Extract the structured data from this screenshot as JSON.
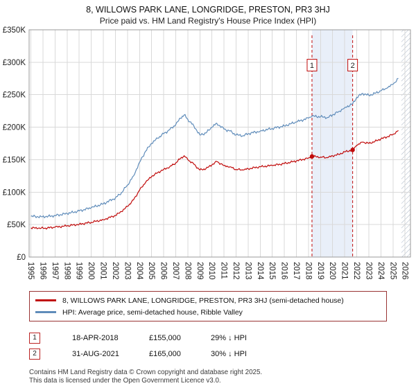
{
  "title": "8, WILLOWS PARK LANE, LONGRIDGE, PRESTON, PR3 3HJ",
  "subtitle": "Price paid vs. HM Land Registry's House Price Index (HPI)",
  "chart_data": {
    "type": "line",
    "title": "8, WILLOWS PARK LANE, LONGRIDGE, PRESTON, PR3 3HJ",
    "subtitle": "Price paid vs. HM Land Registry's House Price Index (HPI)",
    "xlabel": "",
    "ylabel": "",
    "x_range": [
      1994.85,
      2026.45
    ],
    "y_range": [
      0,
      350000
    ],
    "x_ticks": [
      1995,
      1996,
      1997,
      1998,
      1999,
      2000,
      2001,
      2002,
      2003,
      2004,
      2005,
      2006,
      2007,
      2008,
      2009,
      2010,
      2011,
      2012,
      2013,
      2014,
      2015,
      2016,
      2017,
      2018,
      2019,
      2020,
      2021,
      2022,
      2023,
      2024,
      2025,
      2026
    ],
    "y_ticks": [
      0,
      50000,
      100000,
      150000,
      200000,
      250000,
      300000,
      350000
    ],
    "y_tick_labels": [
      "£0",
      "£50K",
      "£100K",
      "£150K",
      "£200K",
      "£250K",
      "£300K",
      "£350K"
    ],
    "grid": true,
    "legend_position": "bottom",
    "colors": {
      "property": "#c00a0a",
      "hpi": "#5f8cba",
      "shade": "#e9eff9",
      "hatch": "#a8b4c4",
      "grid": "#d9d9d9",
      "border": "#999999"
    },
    "series": [
      {
        "name": "8, WILLOWS PARK LANE, LONGRIDGE, PRESTON, PR3 3HJ (semi-detached house)",
        "color": "#c00a0a",
        "anchors": [
          [
            1995,
            45000
          ],
          [
            1995.6,
            44300
          ],
          [
            1996.2,
            44600
          ],
          [
            1997,
            46000
          ],
          [
            1998,
            48000
          ],
          [
            1999,
            50500
          ],
          [
            2000,
            53500
          ],
          [
            2001,
            57500
          ],
          [
            2002,
            64000
          ],
          [
            2002.5,
            70000
          ],
          [
            2003,
            78000
          ],
          [
            2003.5,
            88000
          ],
          [
            2004,
            103000
          ],
          [
            2004.5,
            115000
          ],
          [
            2005,
            124000
          ],
          [
            2005.5,
            130000
          ],
          [
            2006,
            135000
          ],
          [
            2006.5,
            139000
          ],
          [
            2007,
            145000
          ],
          [
            2007.4,
            152000
          ],
          [
            2007.7,
            156000
          ],
          [
            2008,
            150000
          ],
          [
            2008.5,
            143000
          ],
          [
            2009,
            134000
          ],
          [
            2009.5,
            136000
          ],
          [
            2010,
            142000
          ],
          [
            2010.4,
            147000
          ],
          [
            2011,
            141000
          ],
          [
            2011.5,
            139000
          ],
          [
            2012,
            135000
          ],
          [
            2012.6,
            134000
          ],
          [
            2013,
            136000
          ],
          [
            2014,
            139000
          ],
          [
            2015,
            141000
          ],
          [
            2016,
            144000
          ],
          [
            2017,
            148000
          ],
          [
            2018,
            152500
          ],
          [
            2018.29,
            155000
          ],
          [
            2019,
            154000
          ],
          [
            2019.6,
            153000
          ],
          [
            2020,
            156000
          ],
          [
            2020.5,
            158000
          ],
          [
            2021,
            162000
          ],
          [
            2021.66,
            165000
          ],
          [
            2022,
            172000
          ],
          [
            2022.5,
            177000
          ],
          [
            2023,
            175000
          ],
          [
            2023.5,
            178000
          ],
          [
            2024,
            182000
          ],
          [
            2024.5,
            185000
          ],
          [
            2025,
            189000
          ],
          [
            2025.45,
            195000
          ]
        ]
      },
      {
        "name": "HPI: Average price, semi-detached house, Ribble Valley",
        "color": "#5f8cba",
        "anchors": [
          [
            1995,
            63000
          ],
          [
            1995.6,
            61800
          ],
          [
            1996.2,
            62000
          ],
          [
            1997,
            64000
          ],
          [
            1998,
            67000
          ],
          [
            1999,
            71000
          ],
          [
            2000,
            76000
          ],
          [
            2001,
            82000
          ],
          [
            2002,
            91000
          ],
          [
            2002.5,
            99000
          ],
          [
            2003,
            111000
          ],
          [
            2003.5,
            125000
          ],
          [
            2004,
            146000
          ],
          [
            2004.5,
            163000
          ],
          [
            2005,
            175000
          ],
          [
            2005.5,
            183000
          ],
          [
            2006,
            190000
          ],
          [
            2006.5,
            196000
          ],
          [
            2007,
            204000
          ],
          [
            2007.4,
            214000
          ],
          [
            2007.7,
            219000
          ],
          [
            2008,
            212000
          ],
          [
            2008.5,
            202000
          ],
          [
            2009,
            188000
          ],
          [
            2009.5,
            191000
          ],
          [
            2010,
            200000
          ],
          [
            2010.4,
            206000
          ],
          [
            2011,
            197000
          ],
          [
            2011.5,
            194000
          ],
          [
            2012,
            188000
          ],
          [
            2012.6,
            187000
          ],
          [
            2013,
            190000
          ],
          [
            2014,
            194000
          ],
          [
            2015,
            198000
          ],
          [
            2016,
            202000
          ],
          [
            2017,
            208000
          ],
          [
            2018,
            214000
          ],
          [
            2018.29,
            217000
          ],
          [
            2019,
            216000
          ],
          [
            2019.6,
            215000
          ],
          [
            2020,
            219000
          ],
          [
            2020.5,
            224000
          ],
          [
            2021,
            230000
          ],
          [
            2021.66,
            236000
          ],
          [
            2022,
            246000
          ],
          [
            2022.5,
            252000
          ],
          [
            2023,
            249000
          ],
          [
            2023.5,
            252000
          ],
          [
            2024,
            256000
          ],
          [
            2024.5,
            260000
          ],
          [
            2025,
            266000
          ],
          [
            2025.45,
            275000
          ]
        ]
      }
    ],
    "sales": [
      {
        "label": "1",
        "x": 2018.29,
        "y": 155000,
        "date": "18-APR-2018",
        "price": "£155,000",
        "vs_hpi": "29% ↓ HPI"
      },
      {
        "label": "2",
        "x": 2021.66,
        "y": 165000,
        "date": "31-AUG-2021",
        "price": "£165,000",
        "vs_hpi": "30% ↓ HPI"
      }
    ],
    "marker_label_y": 295000,
    "shaded_region": [
      2018.29,
      2021.66
    ],
    "hatched_region": [
      2025.7,
      2026.45
    ]
  },
  "legend": {
    "items": [
      {
        "label": "8, WILLOWS PARK LANE, LONGRIDGE, PRESTON, PR3 3HJ (semi-detached house)",
        "color": "#c00a0a"
      },
      {
        "label": "HPI: Average price, semi-detached house, Ribble Valley",
        "color": "#5f8cba"
      }
    ]
  },
  "annotations": [
    {
      "number": "1",
      "date": "18-APR-2018",
      "price": "£155,000",
      "vs_hpi": "29% ↓ HPI"
    },
    {
      "number": "2",
      "date": "31-AUG-2021",
      "price": "£165,000",
      "vs_hpi": "30% ↓ HPI"
    }
  ],
  "footer": {
    "line1": "Contains HM Land Registry data © Crown copyright and database right 2025.",
    "line2": "This data is licensed under the Open Government Licence v3.0."
  }
}
